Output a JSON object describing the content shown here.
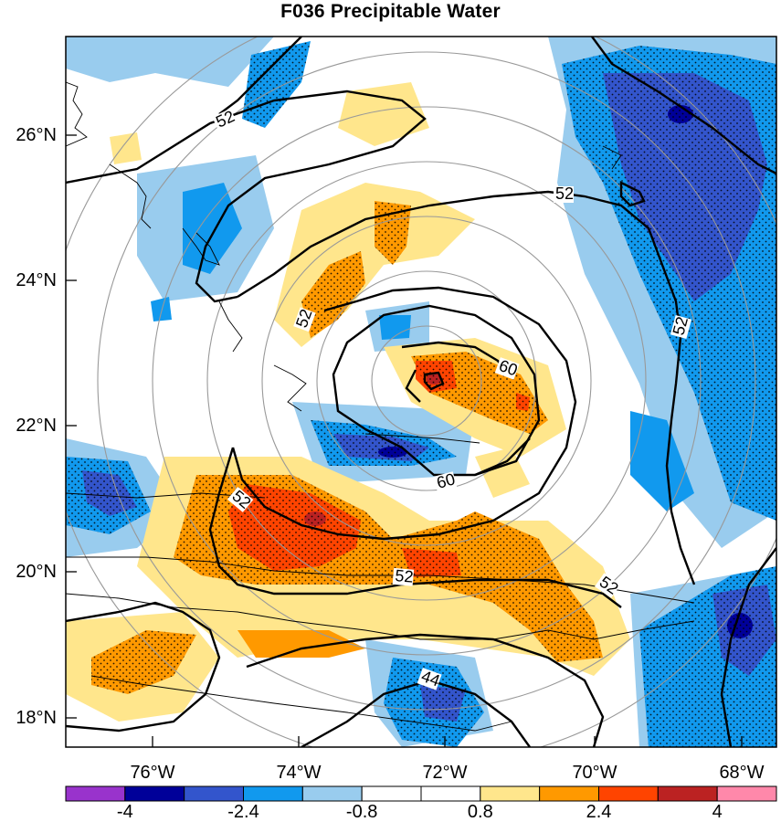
{
  "title": "F036 Precipitable Water",
  "lat_labels": [
    "26°N",
    "24°N",
    "22°N",
    "20°N",
    "18°N"
  ],
  "lon_labels": [
    "76°W",
    "74°W",
    "72°W",
    "70°W",
    "68°W"
  ],
  "contour_labels": [
    "52",
    "52",
    "52",
    "60",
    "60",
    "52",
    "52",
    "52",
    "52",
    "44"
  ],
  "colorbar": {
    "colors": [
      "#9933cc",
      "#000099",
      "#3355cc",
      "#1199ee",
      "#99ccee",
      "#ffffff",
      "#ffffff",
      "#ffe68c",
      "#ff9900",
      "#ff4400",
      "#bb2222",
      "#ff88aa"
    ],
    "labels": [
      "-4",
      "-2.4",
      "-0.8",
      "0.8",
      "2.4",
      "4"
    ]
  }
}
